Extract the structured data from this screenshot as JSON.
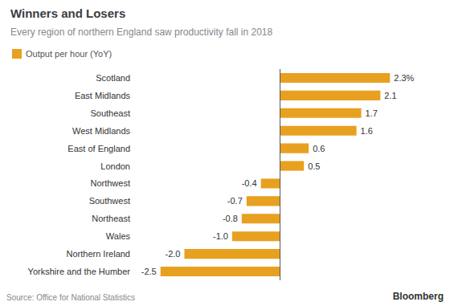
{
  "chart_data": {
    "type": "bar",
    "orientation": "horizontal",
    "title": "Winners and Losers",
    "subtitle": "Every region of northern England saw productivity fall in 2018",
    "categories": [
      "Scotland",
      "East Midlands",
      "Southeast",
      "West Midlands",
      "East of England",
      "London",
      "Northwest",
      "Southwest",
      "Northeast",
      "Wales",
      "Northern Ireland",
      "Yorkshire and the Humber"
    ],
    "series": [
      {
        "name": "Output per hour (YoY)",
        "color": "#e8a020",
        "values": [
          2.3,
          2.1,
          1.7,
          1.6,
          0.6,
          0.5,
          -0.4,
          -0.7,
          -0.8,
          -1.0,
          -2.0,
          -2.5
        ],
        "value_labels": [
          "2.3%",
          "2.1",
          "1.7",
          "1.6",
          "0.6",
          "0.5",
          "-0.4",
          "-0.7",
          "-0.8",
          "-1.0",
          "-2.0",
          "-2.5"
        ]
      }
    ],
    "xlim": [
      -3.0,
      2.8
    ],
    "data_labels": true,
    "tick_labels": "y",
    "grid": false,
    "legend": "upper left",
    "annotations": [
      "Source: Office for National Statistics",
      "Bloomberg"
    ]
  }
}
